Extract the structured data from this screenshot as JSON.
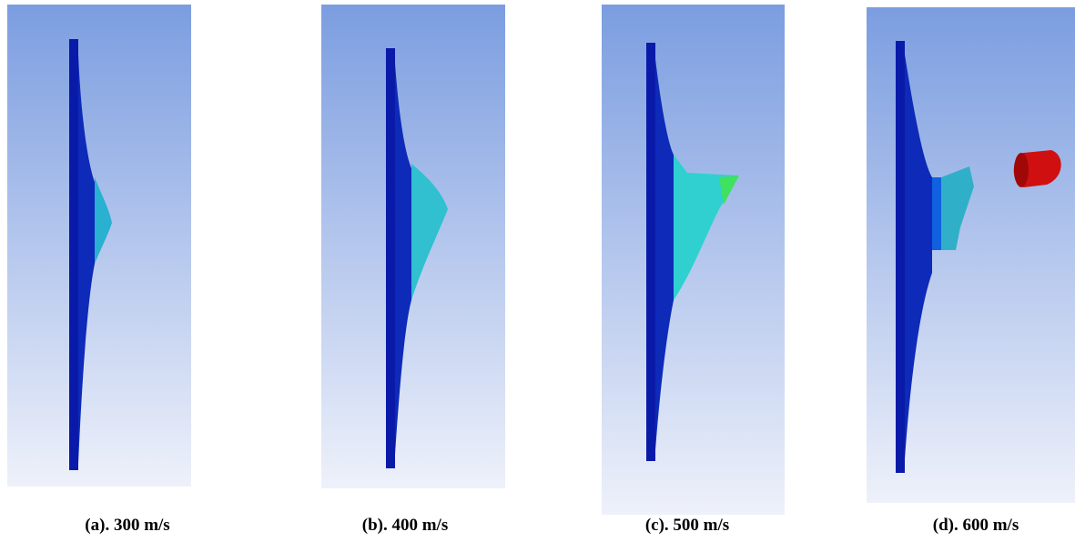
{
  "captions": [
    "(a). 300 m/s",
    "(b). 400 m/s",
    "(c). 500 m/s",
    "(d). 600 m/s"
  ]
}
